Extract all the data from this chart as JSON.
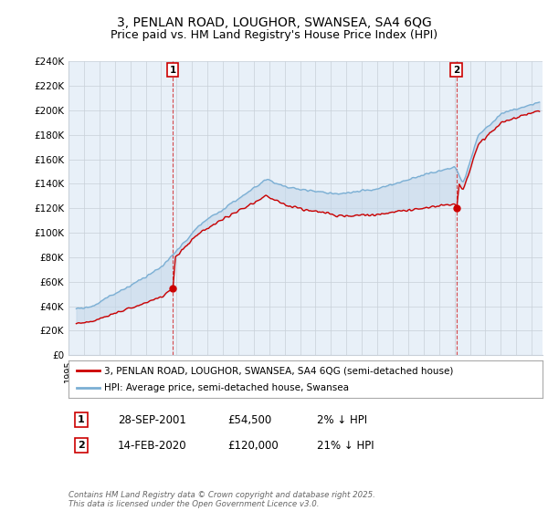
{
  "title": "3, PENLAN ROAD, LOUGHOR, SWANSEA, SA4 6QG",
  "subtitle": "Price paid vs. HM Land Registry's House Price Index (HPI)",
  "background_color": "#ffffff",
  "plot_bg_color": "#e8f0f8",
  "grid_color": "#c8d0d8",
  "ylim": [
    0,
    240000
  ],
  "yticks": [
    0,
    20000,
    40000,
    60000,
    80000,
    100000,
    120000,
    140000,
    160000,
    180000,
    200000,
    220000,
    240000
  ],
  "ytick_labels": [
    "£0",
    "£20K",
    "£40K",
    "£60K",
    "£80K",
    "£100K",
    "£120K",
    "£140K",
    "£160K",
    "£180K",
    "£200K",
    "£220K",
    "£240K"
  ],
  "sale1_date": 2001.74,
  "sale1_price": 54500,
  "sale1_label": "1",
  "sale2_date": 2020.12,
  "sale2_price": 120000,
  "sale2_label": "2",
  "line1_color": "#cc0000",
  "line2_color": "#7bafd4",
  "fill_color": "#c5d8ea",
  "legend_line1": "3, PENLAN ROAD, LOUGHOR, SWANSEA, SA4 6QG (semi-detached house)",
  "legend_line2": "HPI: Average price, semi-detached house, Swansea",
  "table_row1": [
    "1",
    "28-SEP-2001",
    "£54,500",
    "2% ↓ HPI"
  ],
  "table_row2": [
    "2",
    "14-FEB-2020",
    "£120,000",
    "21% ↓ HPI"
  ],
  "copyright_text": "Contains HM Land Registry data © Crown copyright and database right 2025.\nThis data is licensed under the Open Government Licence v3.0.",
  "title_fontsize": 10,
  "subtitle_fontsize": 9
}
